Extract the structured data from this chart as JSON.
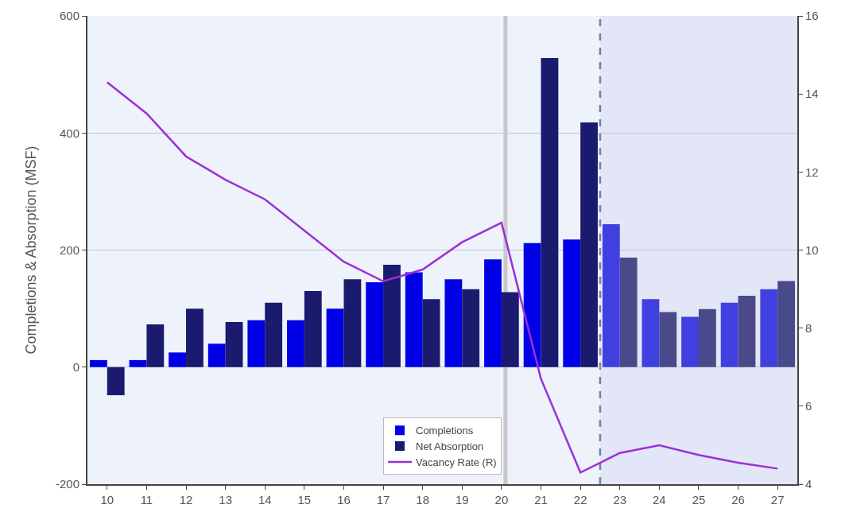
{
  "chart_data": {
    "type": "bar",
    "ylabel": "Completions & Absorption (MSF)",
    "x": [
      10,
      11,
      12,
      13,
      14,
      15,
      16,
      17,
      18,
      19,
      20,
      21,
      22,
      23,
      24,
      25,
      26,
      27
    ],
    "xlim": [
      9.5,
      27.5
    ],
    "xticks": [
      10,
      11,
      12,
      13,
      14,
      15,
      16,
      17,
      18,
      19,
      20,
      21,
      22,
      23,
      24,
      25,
      26,
      27
    ],
    "ylim": [
      -200,
      600
    ],
    "yticks": [
      -200,
      0,
      200,
      400,
      600
    ],
    "y2lim": [
      4,
      16
    ],
    "y2ticks": [
      4,
      6,
      8,
      10,
      12,
      14,
      16
    ],
    "grid": "y",
    "legend": "bottom",
    "series": [
      {
        "name": "Completions",
        "colors": [
          "#0000e6",
          "#0000e6",
          "#0000e6",
          "#0000e6",
          "#0000e6",
          "#0000e6",
          "#0000e6",
          "#0000e6",
          "#0000e6",
          "#0000e6",
          "#0000e6",
          "#0000e6",
          "#0000e6",
          "#4040e0",
          "#4040e0",
          "#4040e0",
          "#4040e0",
          "#4040e0"
        ],
        "values": [
          12,
          12,
          25,
          40,
          80,
          80,
          100,
          145,
          162,
          150,
          184,
          212,
          218,
          244,
          116,
          86,
          110,
          133
        ]
      },
      {
        "name": "Net Absorption",
        "colors": [
          "#1a1a6e",
          "#1a1a6e",
          "#1a1a6e",
          "#1a1a6e",
          "#1a1a6e",
          "#1a1a6e",
          "#1a1a6e",
          "#1a1a6e",
          "#1a1a6e",
          "#1a1a6e",
          "#1a1a6e",
          "#1a1a6e",
          "#1a1a6e",
          "#4a4a8a",
          "#4a4a8a",
          "#4a4a8a",
          "#4a4a8a",
          "#4a4a8a"
        ],
        "values": [
          -48,
          73,
          100,
          77,
          110,
          130,
          150,
          175,
          116,
          133,
          128,
          528,
          418,
          187,
          94,
          99,
          122,
          147
        ]
      },
      {
        "name": "Vacancy Rate (R)",
        "type": "line",
        "axis": "y2",
        "color": "#9b30d9",
        "values": [
          14.3,
          13.5,
          12.4,
          11.8,
          11.3,
          10.5,
          9.7,
          9.2,
          9.5,
          10.2,
          10.7,
          6.7,
          4.3,
          4.8,
          5.0,
          4.75,
          4.55,
          4.4
        ]
      }
    ],
    "ref_lines": [
      {
        "axis": "x",
        "value": 20.1,
        "color": "#c8c8c8",
        "line_style": "solid"
      },
      {
        "axis": "x",
        "value": 22.5,
        "color": "#7080a8",
        "line_style": "dashed"
      }
    ],
    "bands": [
      {
        "axis": "x",
        "from": 22.5,
        "to": 27.5,
        "color": "#e2e6f7"
      }
    ]
  }
}
